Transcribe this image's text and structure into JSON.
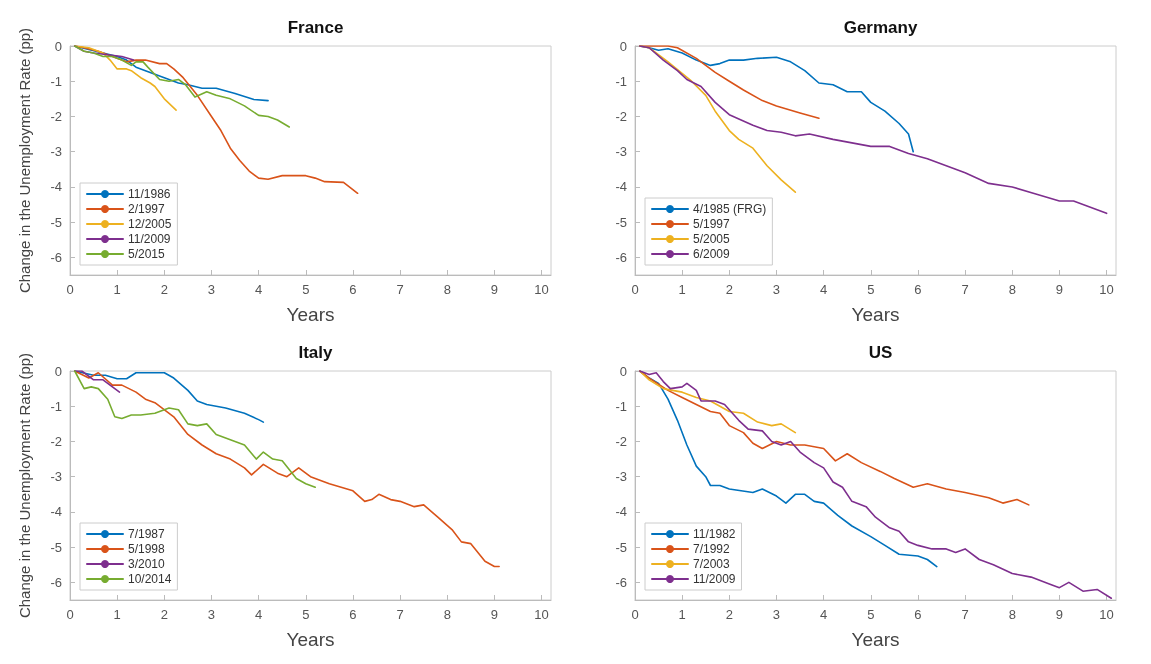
{
  "chart_data": [
    {
      "type": "line",
      "title": "France",
      "xlabel": "Years",
      "ylabel": "Change in the Unemployment Rate (pp)",
      "xlim": [
        0,
        10.2
      ],
      "ylim": [
        -6.5,
        0
      ],
      "xticks": [
        0,
        1,
        2,
        3,
        4,
        5,
        6,
        7,
        8,
        9,
        10
      ],
      "yticks": [
        -6,
        -5,
        -4,
        -3,
        -2,
        -1,
        0
      ],
      "legend": "bottom left",
      "series": [
        {
          "name": "11/1986",
          "color": "#0072bd",
          "x": [
            0.1,
            0.4,
            0.7,
            1,
            1.2,
            1.4,
            1.7,
            2,
            2.3,
            2.5,
            2.8,
            3.1,
            3.5,
            3.9,
            4.2
          ],
          "values": [
            0,
            -0.1,
            -0.2,
            -0.3,
            -0.4,
            -0.6,
            -0.75,
            -0.9,
            -1.05,
            -1.1,
            -1.2,
            -1.2,
            -1.35,
            -1.52,
            -1.55
          ]
        },
        {
          "name": "2/1997",
          "color": "#d95319",
          "x": [
            0.1,
            0.3,
            0.6,
            0.9,
            1.2,
            1.4,
            1.6,
            1.9,
            2.05,
            2.2,
            2.4,
            2.7,
            3,
            3.2,
            3.4,
            3.6,
            3.8,
            4,
            4.2,
            4.5,
            5,
            5.2,
            5.4,
            5.8,
            6.1
          ],
          "values": [
            0,
            -0.05,
            -0.15,
            -0.3,
            -0.45,
            -0.4,
            -0.4,
            -0.5,
            -0.5,
            -0.65,
            -0.9,
            -1.4,
            -2,
            -2.4,
            -2.9,
            -3.25,
            -3.55,
            -3.75,
            -3.78,
            -3.68,
            -3.68,
            -3.75,
            -3.85,
            -3.87,
            -4.18
          ]
        },
        {
          "name": "12/2005",
          "color": "#edb120",
          "x": [
            0.1,
            0.4,
            0.7,
            0.85,
            1,
            1.2,
            1.3,
            1.5,
            1.7,
            1.8,
            2,
            2.25
          ],
          "values": [
            0,
            -0.05,
            -0.2,
            -0.4,
            -0.65,
            -0.65,
            -0.7,
            -0.9,
            -1.05,
            -1.15,
            -1.5,
            -1.82
          ]
        },
        {
          "name": "11/2009",
          "color": "#7e2f8e",
          "x": [
            0.1,
            0.3,
            0.5,
            0.8,
            1.1,
            1.35
          ],
          "values": [
            0,
            -0.15,
            -0.2,
            -0.25,
            -0.3,
            -0.4
          ]
        },
        {
          "name": "5/2015",
          "color": "#77ac30",
          "x": [
            0.1,
            0.3,
            0.5,
            0.7,
            0.9,
            1.1,
            1.3,
            1.4,
            1.55,
            1.65,
            1.9,
            2.1,
            2.3,
            2.45,
            2.65,
            2.9,
            3.1,
            3.4,
            3.7,
            4,
            4.2,
            4.4,
            4.65
          ],
          "values": [
            0,
            -0.15,
            -0.2,
            -0.3,
            -0.3,
            -0.4,
            -0.55,
            -0.45,
            -0.45,
            -0.6,
            -0.95,
            -1,
            -0.95,
            -1.1,
            -1.45,
            -1.3,
            -1.4,
            -1.5,
            -1.7,
            -1.97,
            -2,
            -2.1,
            -2.3
          ]
        }
      ]
    },
    {
      "type": "line",
      "title": "Germany",
      "xlabel": "Years",
      "xlim": [
        0,
        10.2
      ],
      "ylim": [
        -6.5,
        0
      ],
      "xticks": [
        0,
        1,
        2,
        3,
        4,
        5,
        6,
        7,
        8,
        9,
        10
      ],
      "yticks": [
        -6,
        -5,
        -4,
        -3,
        -2,
        -1,
        0
      ],
      "legend": "bottom left",
      "series": [
        {
          "name": "4/1985 (FRG)",
          "color": "#0072bd",
          "x": [
            0.1,
            0.3,
            0.5,
            0.7,
            1,
            1.3,
            1.6,
            1.8,
            2,
            2.3,
            2.6,
            3,
            3.3,
            3.6,
            3.9,
            4.2,
            4.5,
            4.8,
            5,
            5.3,
            5.6,
            5.8,
            5.9
          ],
          "values": [
            0,
            -0.05,
            -0.12,
            -0.08,
            -0.2,
            -0.4,
            -0.55,
            -0.5,
            -0.4,
            -0.4,
            -0.35,
            -0.32,
            -0.45,
            -0.7,
            -1.05,
            -1.1,
            -1.3,
            -1.3,
            -1.6,
            -1.85,
            -2.2,
            -2.5,
            -3
          ]
        },
        {
          "name": "5/1997",
          "color": "#d95319",
          "x": [
            0.1,
            0.7,
            0.9,
            1.3,
            1.7,
            2,
            2.3,
            2.7,
            3,
            3.5,
            3.9
          ],
          "values": [
            0,
            0,
            -0.05,
            -0.35,
            -0.75,
            -1,
            -1.25,
            -1.55,
            -1.7,
            -1.9,
            -2.05
          ]
        },
        {
          "name": "5/2005",
          "color": "#edb120",
          "x": [
            0.1,
            0.3,
            0.7,
            1.2,
            1.5,
            1.7,
            2,
            2.2,
            2.5,
            2.8,
            3.1,
            3.4
          ],
          "values": [
            0,
            -0.05,
            -0.45,
            -1,
            -1.4,
            -1.85,
            -2.4,
            -2.65,
            -2.9,
            -3.4,
            -3.8,
            -4.15
          ]
        },
        {
          "name": "6/2009",
          "color": "#7e2f8e",
          "x": [
            0.1,
            0.3,
            0.6,
            0.9,
            1.1,
            1.4,
            1.7,
            2,
            2.5,
            2.8,
            3.1,
            3.4,
            3.7,
            4.2,
            4.6,
            5,
            5.4,
            5.8,
            6.2,
            6.5,
            7,
            7.5,
            8,
            8.5,
            9,
            9.3,
            10
          ],
          "values": [
            0,
            -0.05,
            -0.4,
            -0.7,
            -0.95,
            -1.15,
            -1.6,
            -1.95,
            -2.25,
            -2.4,
            -2.45,
            -2.55,
            -2.5,
            -2.65,
            -2.75,
            -2.85,
            -2.85,
            -3.05,
            -3.2,
            -3.35,
            -3.6,
            -3.9,
            -4,
            -4.2,
            -4.4,
            -4.4,
            -4.75
          ]
        }
      ]
    },
    {
      "type": "line",
      "title": "Italy",
      "xlabel": "Years",
      "ylabel": "Change in the Unemployment Rate (pp)",
      "xlim": [
        0,
        10.2
      ],
      "ylim": [
        -6.5,
        0
      ],
      "xticks": [
        0,
        1,
        2,
        3,
        4,
        5,
        6,
        7,
        8,
        9,
        10
      ],
      "yticks": [
        -6,
        -5,
        -4,
        -3,
        -2,
        -1,
        0
      ],
      "legend": "bottom left",
      "series": [
        {
          "name": "7/1987",
          "color": "#0072bd",
          "x": [
            0.1,
            0.5,
            0.75,
            1,
            1.2,
            1.4,
            2,
            2.2,
            2.5,
            2.7,
            2.9,
            3.3,
            3.7,
            4,
            4.1
          ],
          "values": [
            0,
            -0.12,
            -0.12,
            -0.22,
            -0.22,
            -0.05,
            -0.05,
            -0.2,
            -0.55,
            -0.85,
            -0.95,
            -1.05,
            -1.2,
            -1.38,
            -1.45
          ]
        },
        {
          "name": "5/1998",
          "color": "#d95319",
          "x": [
            0.1,
            0.4,
            0.6,
            0.9,
            1.1,
            1.4,
            1.6,
            1.8,
            2.2,
            2.5,
            2.8,
            3.1,
            3.4,
            3.7,
            3.85,
            4.1,
            4.4,
            4.6,
            4.85,
            5.1,
            5.5,
            6,
            6.25,
            6.4,
            6.55,
            6.8,
            7,
            7.3,
            7.5,
            7.8,
            8.1,
            8.3,
            8.5,
            8.8,
            9,
            9.1
          ],
          "values": [
            0,
            -0.2,
            -0.05,
            -0.4,
            -0.4,
            -0.6,
            -0.8,
            -0.9,
            -1.3,
            -1.8,
            -2.1,
            -2.35,
            -2.5,
            -2.75,
            -2.95,
            -2.65,
            -2.9,
            -3,
            -2.75,
            -3,
            -3.2,
            -3.4,
            -3.7,
            -3.65,
            -3.5,
            -3.65,
            -3.7,
            -3.85,
            -3.8,
            -4.15,
            -4.5,
            -4.85,
            -4.9,
            -5.4,
            -5.55,
            -5.55
          ]
        },
        {
          "name": "3/2010",
          "color": "#7e2f8e",
          "x": [
            0.1,
            0.25,
            0.5,
            0.7,
            0.9,
            1.05
          ],
          "values": [
            0,
            0,
            -0.25,
            -0.25,
            -0.45,
            -0.6
          ]
        },
        {
          "name": "10/2014",
          "color": "#77ac30",
          "x": [
            0.1,
            0.3,
            0.45,
            0.6,
            0.8,
            0.95,
            1.1,
            1.3,
            1.5,
            1.8,
            2.1,
            2.3,
            2.5,
            2.7,
            2.9,
            3.1,
            3.4,
            3.7,
            3.95,
            4.1,
            4.3,
            4.5,
            4.8,
            5,
            5.2
          ],
          "values": [
            0,
            -0.5,
            -0.45,
            -0.5,
            -0.8,
            -1.3,
            -1.35,
            -1.25,
            -1.25,
            -1.2,
            -1.05,
            -1.1,
            -1.5,
            -1.55,
            -1.5,
            -1.8,
            -1.95,
            -2.1,
            -2.5,
            -2.3,
            -2.5,
            -2.55,
            -3.05,
            -3.2,
            -3.3
          ]
        }
      ]
    },
    {
      "type": "line",
      "title": "US",
      "xlabel": "Years",
      "xlim": [
        0,
        10.2
      ],
      "ylim": [
        -6.5,
        0
      ],
      "xticks": [
        0,
        1,
        2,
        3,
        4,
        5,
        6,
        7,
        8,
        9,
        10
      ],
      "yticks": [
        -6,
        -5,
        -4,
        -3,
        -2,
        -1,
        0
      ],
      "legend": "bottom left",
      "series": [
        {
          "name": "11/1982",
          "color": "#0072bd",
          "x": [
            0.1,
            0.3,
            0.5,
            0.7,
            0.9,
            1.1,
            1.3,
            1.5,
            1.6,
            1.8,
            2,
            2.5,
            2.7,
            3,
            3.2,
            3.4,
            3.6,
            3.8,
            4,
            4.3,
            4.6,
            5,
            5.3,
            5.6,
            6,
            6.2,
            6.4
          ],
          "values": [
            0,
            -0.2,
            -0.35,
            -0.8,
            -1.4,
            -2.1,
            -2.7,
            -3,
            -3.25,
            -3.25,
            -3.35,
            -3.45,
            -3.35,
            -3.55,
            -3.75,
            -3.5,
            -3.5,
            -3.7,
            -3.75,
            -4.1,
            -4.4,
            -4.7,
            -4.95,
            -5.2,
            -5.25,
            -5.35,
            -5.55
          ]
        },
        {
          "name": "7/1992",
          "color": "#d95319",
          "x": [
            0.1,
            0.3,
            0.7,
            1,
            1.3,
            1.6,
            1.8,
            2,
            2.3,
            2.5,
            2.7,
            3,
            3.3,
            3.6,
            4,
            4.25,
            4.5,
            4.8,
            5.2,
            5.5,
            5.9,
            6.2,
            6.6,
            7,
            7.5,
            7.8,
            8.1,
            8.35
          ],
          "values": [
            0,
            -0.2,
            -0.55,
            -0.75,
            -0.95,
            -1.15,
            -1.2,
            -1.55,
            -1.75,
            -2.05,
            -2.2,
            -2,
            -2.1,
            -2.1,
            -2.2,
            -2.55,
            -2.35,
            -2.6,
            -2.85,
            -3.05,
            -3.3,
            -3.2,
            -3.35,
            -3.45,
            -3.6,
            -3.75,
            -3.65,
            -3.8
          ]
        },
        {
          "name": "7/2003",
          "color": "#edb120",
          "x": [
            0.1,
            0.3,
            0.6,
            1,
            1.3,
            1.6,
            2,
            2.3,
            2.6,
            2.9,
            3.1,
            3.4
          ],
          "values": [
            0,
            -0.25,
            -0.5,
            -0.6,
            -0.75,
            -0.85,
            -1.15,
            -1.2,
            -1.45,
            -1.55,
            -1.5,
            -1.75
          ]
        },
        {
          "name": "11/2009",
          "color": "#7e2f8e",
          "x": [
            0.1,
            0.3,
            0.45,
            0.6,
            0.75,
            1,
            1.1,
            1.3,
            1.4,
            1.7,
            1.9,
            2.2,
            2.4,
            2.7,
            2.9,
            3.1,
            3.3,
            3.5,
            3.8,
            4,
            4.2,
            4.4,
            4.6,
            4.9,
            5.1,
            5.4,
            5.6,
            5.8,
            6,
            6.3,
            6.6,
            6.8,
            7,
            7.3,
            7.6,
            8,
            8.4,
            8.8,
            9,
            9.2,
            9.5,
            9.8,
            10.1
          ],
          "values": [
            0,
            -0.1,
            -0.05,
            -0.3,
            -0.5,
            -0.45,
            -0.35,
            -0.55,
            -0.85,
            -0.85,
            -0.95,
            -1.4,
            -1.65,
            -1.7,
            -2,
            -2.1,
            -2,
            -2.3,
            -2.6,
            -2.75,
            -3.15,
            -3.3,
            -3.7,
            -3.85,
            -4.15,
            -4.45,
            -4.55,
            -4.85,
            -4.95,
            -5.05,
            -5.05,
            -5.15,
            -5.05,
            -5.35,
            -5.5,
            -5.75,
            -5.85,
            -6.05,
            -6.15,
            -6,
            -6.25,
            -6.2,
            -6.45
          ]
        }
      ]
    }
  ]
}
